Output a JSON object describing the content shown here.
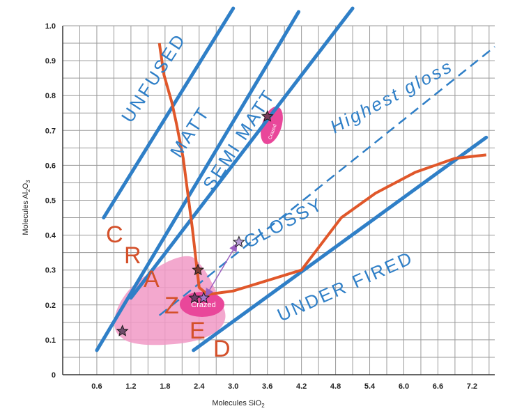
{
  "chart_data": {
    "type": "line",
    "xlabel": "Molecules SiO",
    "xlabel_sub": "2",
    "ylabel": "Molecules Al",
    "ylabel_sub1": "2",
    "ylabel_mid": "O",
    "ylabel_sub2": "3",
    "xlim": [
      0,
      7.6
    ],
    "ylim": [
      0,
      1.0
    ],
    "x_ticks": [
      "0.6",
      "1.2",
      "1.8",
      "2.4",
      "3.0",
      "3.6",
      "4.2",
      "4.8",
      "5.4",
      "6.0",
      "6.6",
      "7.2"
    ],
    "y_ticks": [
      "0",
      "0.1",
      "0.2",
      "0.3",
      "0.4",
      "0.5",
      "0.6",
      "0.7",
      "0.8",
      "0.9",
      "1.0"
    ],
    "grid": true,
    "region_labels": [
      "UNFUSED",
      "MATT",
      "SEMI MATT",
      "GLOSSY",
      "UNDER FIRED",
      "Highest gloss"
    ],
    "crazed_letters": [
      "C",
      "R",
      "A",
      "Z",
      "E",
      "D"
    ],
    "crazed_region_label": "Crazed",
    "crazed_region_label_small": "Crazed",
    "colors": {
      "blue": "#2f7fc7",
      "orange": "#e0572a",
      "pink": "#f199c6",
      "magenta": "#e9479a",
      "purple": "#9b5fc0"
    },
    "boundary_lines": [
      {
        "x": [
          0.72,
          3.0
        ],
        "y": [
          0.45,
          1.05
        ]
      },
      {
        "x": [
          0.6,
          4.15
        ],
        "y": [
          0.07,
          1.04
        ]
      },
      {
        "x": [
          1.2,
          5.1
        ],
        "y": [
          0.22,
          1.05
        ]
      },
      {
        "x": [
          2.3,
          7.45
        ],
        "y": [
          0.07,
          0.68
        ]
      }
    ],
    "highest_gloss_line": {
      "x": [
        1.7,
        7.6
      ],
      "y": [
        0.17,
        0.94
      ]
    },
    "craze_curve": {
      "x": [
        1.7,
        1.78,
        1.92,
        2.0,
        2.12,
        2.2,
        2.28,
        2.35,
        2.4,
        2.55,
        3.0,
        3.6,
        4.2,
        4.9,
        5.5,
        6.2,
        6.9,
        7.45
      ],
      "y": [
        0.95,
        0.86,
        0.78,
        0.72,
        0.62,
        0.52,
        0.42,
        0.32,
        0.25,
        0.23,
        0.24,
        0.27,
        0.3,
        0.45,
        0.52,
        0.58,
        0.62,
        0.63
      ]
    },
    "stars": [
      {
        "x": 1.05,
        "y": 0.125,
        "color": "#6f4b6a"
      },
      {
        "x": 2.38,
        "y": 0.3,
        "color": "#7a3b33"
      },
      {
        "x": 2.32,
        "y": 0.22,
        "color": "#6f3b6a"
      },
      {
        "x": 2.48,
        "y": 0.22,
        "color": "#a275c9"
      },
      {
        "x": 3.1,
        "y": 0.38,
        "color": "#b69ad6"
      },
      {
        "x": 3.6,
        "y": 0.74,
        "color": "#7a3b5a"
      }
    ]
  }
}
